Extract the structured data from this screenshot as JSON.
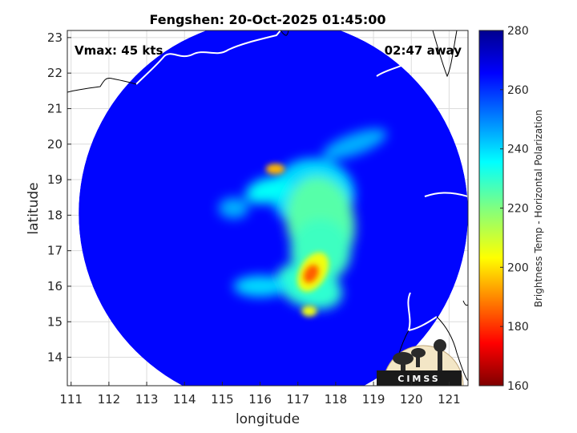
{
  "chart_data": {
    "type": "heatmap",
    "title": "Fengshen: 20-Oct-2025 01:45:00",
    "xlabel": "longitude",
    "ylabel": "latitude",
    "xlim": [
      110.9,
      121.5
    ],
    "ylim": [
      13.2,
      23.2
    ],
    "xticks": [
      111,
      112,
      113,
      114,
      115,
      116,
      117,
      118,
      119,
      120,
      121
    ],
    "yticks": [
      14,
      15,
      16,
      17,
      18,
      19,
      20,
      21,
      22,
      23
    ],
    "grid": true,
    "annotations": {
      "vmax": "Vmax: 45 kts",
      "time_away": "02:47 away"
    },
    "colorbar": {
      "label": "Brightness Temp - Horizontal Polarization",
      "range": [
        160,
        280
      ],
      "ticks": [
        160,
        180,
        200,
        220,
        240,
        260,
        280
      ],
      "colormap": "jet"
    },
    "swath": {
      "center": [
        116.35,
        18.05
      ],
      "radius_deg": 5.15
    },
    "features": [
      {
        "name": "background",
        "value": 265
      },
      {
        "name": "rainband-core",
        "lon": 117.4,
        "lat": 16.4,
        "value": 185
      },
      {
        "name": "hot-spot-north",
        "lon": 116.4,
        "lat": 19.3,
        "value": 195
      },
      {
        "name": "spiral-band",
        "lon": 117.6,
        "lat": 17.8,
        "value": 225
      },
      {
        "name": "inner-band",
        "lon": 116.2,
        "lat": 18.7,
        "value": 235
      }
    ],
    "logo": {
      "text": "CIMSS"
    }
  }
}
